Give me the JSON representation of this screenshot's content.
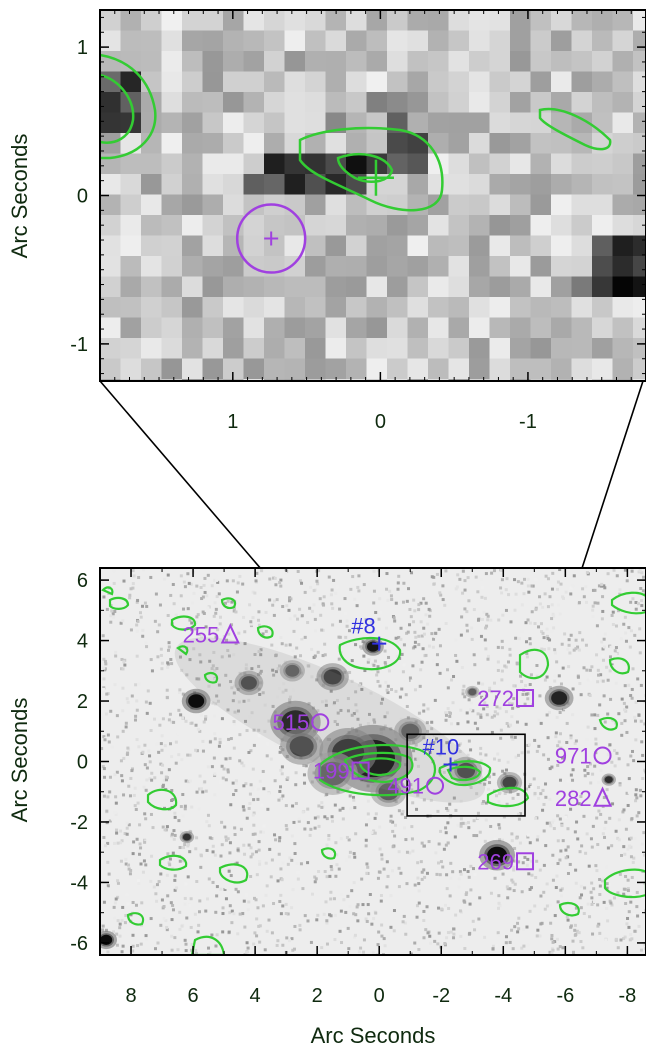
{
  "colors": {
    "contour": "#33cc33",
    "source_magenta": "#a040e0",
    "source_blue": "#3030e0",
    "frame": "#000000",
    "text": "#0f2a0f"
  },
  "chart_data": [
    {
      "type": "heatmap",
      "panel": "top",
      "xlabel": "",
      "ylabel": "Arc Seconds",
      "xlim": [
        1.9,
        -1.8
      ],
      "ylim": [
        -1.25,
        1.25
      ],
      "x_ticks": [
        1,
        0,
        -1
      ],
      "y_ticks": [
        1,
        0,
        -1
      ],
      "x_tick_labels": [
        "1",
        "0",
        "-1"
      ],
      "y_tick_labels": [
        "1",
        "0",
        "-1"
      ],
      "markers": [
        {
          "label": "",
          "shape": "circle-plus",
          "x": 0.74,
          "y": -0.29,
          "color": "magenta"
        },
        {
          "label": "",
          "shape": "plus",
          "x": 0.03,
          "y": 0.12,
          "color": "green"
        }
      ]
    },
    {
      "type": "heatmap",
      "panel": "bottom",
      "xlabel": "Arc Seconds",
      "ylabel": "Arc Seconds",
      "xlim": [
        9,
        -8.6
      ],
      "ylim": [
        -6.4,
        6.4
      ],
      "x_ticks": [
        8,
        6,
        4,
        2,
        0,
        -2,
        -4,
        -6,
        -8
      ],
      "y_ticks": [
        6,
        4,
        2,
        0,
        -2,
        -4,
        -6
      ],
      "x_tick_labels": [
        "8",
        "6",
        "4",
        "2",
        "0",
        "-2",
        "-4",
        "-6",
        "-8"
      ],
      "y_tick_labels": [
        "6",
        "4",
        "2",
        "0",
        "-2",
        "-4",
        "-6"
      ],
      "zoom_box": {
        "x": [
          -0.9,
          -4.7
        ],
        "y": [
          0.9,
          -1.8
        ]
      },
      "sources": [
        {
          "label": "255",
          "shape": "triangle",
          "x": 4.8,
          "y": 4.2,
          "color": "magenta"
        },
        {
          "label": "#8",
          "shape": "plus",
          "x": 0.0,
          "y": 3.9,
          "color": "blue"
        },
        {
          "label": "272",
          "shape": "square",
          "x": -4.7,
          "y": 2.1,
          "color": "magenta"
        },
        {
          "label": "515",
          "shape": "circle",
          "x": 1.9,
          "y": 1.3,
          "color": "magenta"
        },
        {
          "label": "#10",
          "shape": "plus",
          "x": -2.3,
          "y": -0.1,
          "color": "blue"
        },
        {
          "label": "971",
          "shape": "circle",
          "x": -7.2,
          "y": 0.2,
          "color": "magenta"
        },
        {
          "label": "199",
          "shape": "square",
          "x": 0.6,
          "y": -0.3,
          "color": "magenta"
        },
        {
          "label": "491",
          "shape": "circle",
          "x": -1.8,
          "y": -0.8,
          "color": "magenta"
        },
        {
          "label": "282",
          "shape": "triangle",
          "x": -7.2,
          "y": -1.2,
          "color": "magenta"
        },
        {
          "label": "269",
          "shape": "square",
          "x": -4.7,
          "y": -3.3,
          "color": "magenta"
        }
      ]
    }
  ]
}
